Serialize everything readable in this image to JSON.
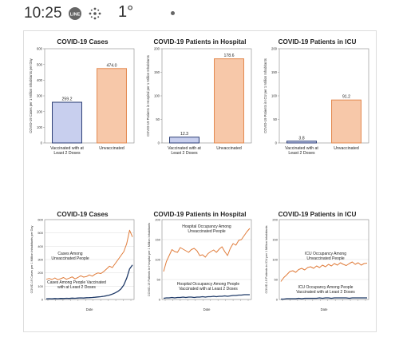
{
  "status_bar": {
    "time": "10:25",
    "notification_icons": [
      "line-app-icon",
      "weather-app-icon"
    ],
    "temperature": "1°",
    "more_indicator": "dot-icon"
  },
  "chart_data": [
    {
      "type": "bar",
      "title": "COVID-19 Cases",
      "ylabel": "COVID-19 Cases per 1 Million Inhabitants per Day",
      "categories": [
        "Vaccinated with at\nLeast 2 Doses",
        "Unvaccinated"
      ],
      "values": [
        259.2,
        474.0
      ],
      "value_labels": [
        "259.2",
        "474.0"
      ],
      "yticks": [
        "0",
        "100",
        "200",
        "300",
        "400",
        "500",
        "600"
      ],
      "ylim": [
        0,
        600
      ],
      "colors": [
        "#c8cfee",
        "#f7c8a9"
      ],
      "edge_colors": [
        "#2c3e75",
        "#e38a50"
      ]
    },
    {
      "type": "bar",
      "title": "COVID-19 Patients in Hospital",
      "ylabel": "COVID-19 Patients in Hospital per 1 Million Inhabitants",
      "categories": [
        "Vaccinated with at\nLeast 2 Doses",
        "Unvaccinated"
      ],
      "values": [
        12.3,
        178.6
      ],
      "value_labels": [
        "12.3",
        "178.6"
      ],
      "yticks": [
        "0",
        "50",
        "100",
        "150",
        "200"
      ],
      "ylim": [
        0,
        200
      ],
      "colors": [
        "#c8cfee",
        "#f7c8a9"
      ],
      "edge_colors": [
        "#2c3e75",
        "#e38a50"
      ]
    },
    {
      "type": "bar",
      "title": "COVID-19 Patients in ICU",
      "ylabel": "COVID-19 Patients in ICU per 1 Million Inhabitants",
      "categories": [
        "Vaccinated with at\nLeast 2 Doses",
        "Unvaccinated"
      ],
      "values": [
        3.8,
        91.2
      ],
      "value_labels": [
        "3.8",
        "91.2"
      ],
      "yticks": [
        "0",
        "50",
        "100",
        "150",
        "200"
      ],
      "ylim": [
        0,
        200
      ],
      "colors": [
        "#c8cfee",
        "#f7c8a9"
      ],
      "edge_colors": [
        "#2c3e75",
        "#e38a50"
      ]
    },
    {
      "type": "line",
      "title": "COVID-19 Cases",
      "xlabel": "Date",
      "ylabel": "COVID-19 Cases per 1 Million Inhabitants per Day",
      "yticks": [
        "0",
        "100",
        "200",
        "300",
        "400",
        "500",
        "600"
      ],
      "ylim": [
        0,
        600
      ],
      "series": [
        {
          "values": [
            152,
            158,
            150,
            162,
            148,
            156,
            165,
            152,
            160,
            170,
            155,
            165,
            178,
            168,
            172,
            185,
            175,
            190,
            200,
            195,
            210,
            230,
            250,
            240,
            270,
            300,
            330,
            360,
            420,
            520,
            470
          ],
          "color": "#e07b39"
        },
        {
          "values": [
            5,
            6,
            5,
            7,
            6,
            8,
            7,
            9,
            8,
            10,
            9,
            11,
            12,
            11,
            13,
            14,
            15,
            17,
            19,
            21,
            24,
            28,
            33,
            40,
            50,
            62,
            80,
            110,
            160,
            230,
            260
          ],
          "color": "#1f3a68"
        }
      ],
      "annotations": [
        {
          "text": "Cases Among\nUnvaccinated People"
        },
        {
          "text": "Cases Among People Vaccinated\nwith at Least 2 Doses"
        }
      ]
    },
    {
      "type": "line",
      "title": "COVID-19 Patients in Hospital",
      "xlabel": "Date",
      "ylabel": "COVID-19 Patients in Hospital per 1 Million Inhabitants",
      "yticks": [
        "0",
        "50",
        "100",
        "150",
        "200"
      ],
      "ylim": [
        0,
        200
      ],
      "series": [
        {
          "values": [
            70,
            95,
            110,
            125,
            120,
            118,
            130,
            126,
            122,
            118,
            125,
            128,
            122,
            110,
            112,
            106,
            115,
            120,
            124,
            118,
            126,
            132,
            120,
            110,
            128,
            140,
            136,
            148,
            150,
            160,
            170,
            178
          ],
          "color": "#e07b39"
        },
        {
          "values": [
            3,
            4,
            4,
            5,
            4,
            5,
            5,
            6,
            5,
            6,
            6,
            5,
            6,
            6,
            7,
            6,
            7,
            7,
            8,
            7,
            8,
            8,
            9,
            8,
            9,
            10,
            10,
            11,
            11,
            12,
            12,
            12
          ],
          "color": "#1f3a68"
        }
      ],
      "annotations": [
        {
          "text": "Hospital Occupancy Among\nUnvaccinated People"
        },
        {
          "text": "Hospital Occupancy Among People\nVaccinated with at Least 2 Doses"
        }
      ]
    },
    {
      "type": "line",
      "title": "COVID-19 Patients in ICU",
      "xlabel": "Date",
      "ylabel": "COVID-19 Patients in ICU per 1 Million Inhabitants",
      "yticks": [
        "0",
        "50",
        "100",
        "150",
        "200"
      ],
      "ylim": [
        0,
        200
      ],
      "series": [
        {
          "values": [
            45,
            55,
            62,
            70,
            72,
            68,
            75,
            78,
            74,
            80,
            82,
            78,
            84,
            80,
            86,
            82,
            88,
            84,
            90,
            86,
            92,
            88,
            85,
            90,
            94,
            88,
            92,
            86,
            90,
            91
          ],
          "color": "#e07b39"
        },
        {
          "values": [
            1,
            1,
            2,
            2,
            2,
            2,
            3,
            2,
            3,
            3,
            3,
            3,
            3,
            4,
            3,
            4,
            4,
            3,
            4,
            4,
            4,
            4,
            4,
            3,
            4,
            4,
            4,
            4,
            4,
            4
          ],
          "color": "#1f3a68"
        }
      ],
      "annotations": [
        {
          "text": "ICU Occupancy Among\nUnvaccinated People"
        },
        {
          "text": "ICU Occupancy Among People\nVaccinated with at Least 2 Doses"
        }
      ]
    }
  ]
}
